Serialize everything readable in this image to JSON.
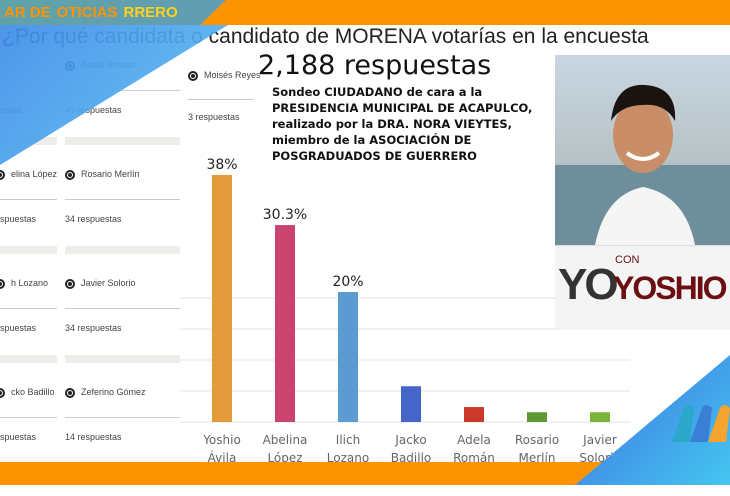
{
  "title": "¿Por qué candidata o candidato de MORENA votarías en la encuesta",
  "total": "2,188 respuestas",
  "description": [
    "Sondeo CIUDADANO de cara a la",
    "PRESIDENCIA MUNICIPAL DE ACAPULCO,",
    "realizado por la DRA. NORA VIEYTES,",
    "miembro de la ASOCIACIÓN DE",
    "POSGRADUADOS DE GUERRERO"
  ],
  "brand": {
    "line1": "AR DE",
    "line2": "OTICIAS",
    "line3": "RRERO"
  },
  "form": {
    "col1": [
      {
        "name": "uestas"
      },
      {
        "name": "elina López",
        "count": "espuestas"
      },
      {
        "name": "h Lozano",
        "count": "espuestas"
      },
      {
        "name": "cko Badillo",
        "count": "espuestas"
      }
    ],
    "col2": [
      {
        "name": "Adela Roman",
        "count": "49 respuestas"
      },
      {
        "name": "Rosario Merlín",
        "count": "34 respuestas"
      },
      {
        "name": "Javier Solorio",
        "count": "34 respuestas"
      },
      {
        "name": "Zeferino Gómez",
        "count": "14 respuestas"
      }
    ],
    "col3": [
      {
        "name": "Moisés Reyes",
        "count": "3 respuestas"
      }
    ]
  },
  "logo": {
    "yo": "YO",
    "con": "CON",
    "name": "YOSHIO"
  },
  "chart_data": {
    "type": "bar",
    "categories": [
      [
        "Yoshio",
        "Ávila"
      ],
      [
        "Abelina",
        "López"
      ],
      [
        "Ilich",
        "Lozano"
      ],
      [
        "Jacko",
        "Badillo"
      ],
      [
        "Adela",
        "Román"
      ],
      [
        "Rosario",
        "Merlín"
      ],
      [
        "Javier",
        "Solorio"
      ]
    ],
    "values": [
      38,
      30.3,
      20,
      5.5,
      2.3,
      1.5,
      1.5
    ],
    "labels": [
      "38%",
      "30.3%",
      "20%",
      "",
      "",
      "",
      ""
    ],
    "colors": [
      "#e39a3b",
      "#c9446f",
      "#5b9bd0",
      "#4565c8",
      "#c9392c",
      "#5e9a33",
      "#7ab43a"
    ],
    "ylim": [
      0,
      40
    ]
  }
}
